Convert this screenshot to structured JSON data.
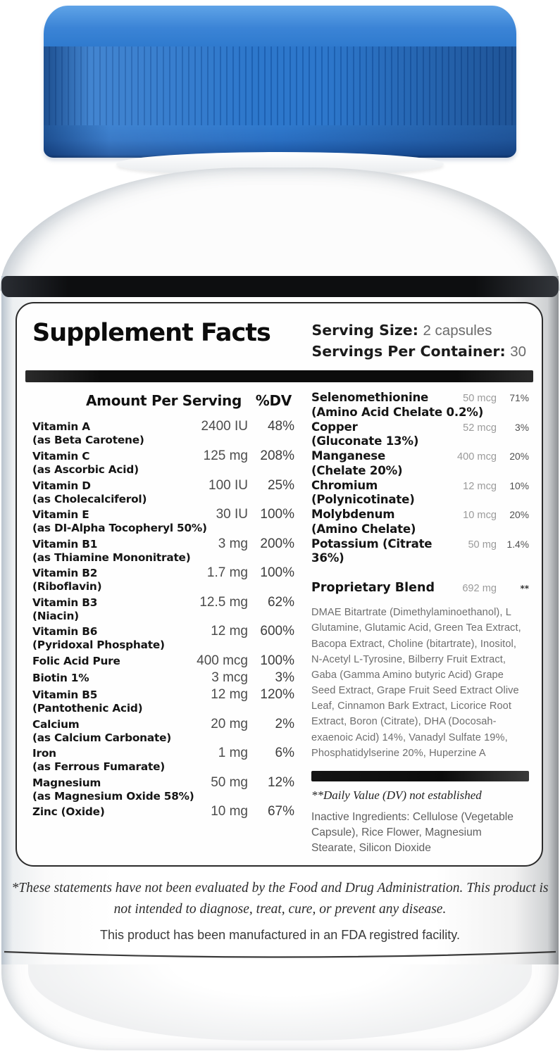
{
  "label": {
    "title": "Supplement Facts",
    "serving_size_label": "Serving Size:",
    "serving_size_value": "2 capsules",
    "servings_per_container_label": "Servings Per Container:",
    "servings_per_container_value": "30",
    "columns_header": {
      "amount": "Amount Per Serving",
      "dv": "%DV"
    },
    "left_rows": [
      {
        "name": "Vitamin A",
        "detail": "(as Beta Carotene)",
        "amount": "2400 IU",
        "dv": "48%"
      },
      {
        "name": "Vitamin C",
        "detail": "(as Ascorbic Acid)",
        "amount": "125 mg",
        "dv": "208%"
      },
      {
        "name": "Vitamin D",
        "detail": "(as Cholecalciferol)",
        "amount": "100 IU",
        "dv": "25%"
      },
      {
        "name": "Vitamin E",
        "detail": "(as DI-Alpha Tocopheryl 50%)",
        "amount": "30 IU",
        "dv": "100%"
      },
      {
        "name": "Vitamin B1",
        "detail": "(as Thiamine Mononitrate)",
        "amount": "3 mg",
        "dv": "200%"
      },
      {
        "name": "Vitamin B2",
        "detail": "(Riboflavin)",
        "amount": "1.7 mg",
        "dv": "100%"
      },
      {
        "name": "Vitamin B3",
        "detail": "(Niacin)",
        "amount": "12.5 mg",
        "dv": "62%"
      },
      {
        "name": "Vitamin B6",
        "detail": "(Pyridoxal Phosphate)",
        "amount": "12 mg",
        "dv": "600%"
      },
      {
        "name": "Folic Acid Pure",
        "detail": null,
        "amount": "400 mcg",
        "dv": "100%"
      },
      {
        "name": "Biotin 1%",
        "detail": null,
        "amount": "3 mcg",
        "dv": "3%"
      },
      {
        "name": "Vitamin B5",
        "detail": "(Pantothenic Acid)",
        "amount": "12 mg",
        "dv": "120%"
      },
      {
        "name": "Calcium",
        "detail": "(as Calcium Carbonate)",
        "amount": "20 mg",
        "dv": "2%"
      },
      {
        "name": "Iron",
        "detail": "(as Ferrous Fumarate)",
        "amount": "1 mg",
        "dv": "6%"
      },
      {
        "name": "Magnesium",
        "detail": "(as Magnesium Oxide 58%)",
        "amount": "50 mg",
        "dv": "12%"
      },
      {
        "name": "Zinc (Oxide)",
        "detail": null,
        "amount": "10 mg",
        "dv": "67%"
      }
    ],
    "right_rows": [
      {
        "name": "Selenomethionine",
        "detail": "(Amino Acid Chelate 0.2%)",
        "amount": "50 mcg",
        "dv": "71%"
      },
      {
        "name": "Copper",
        "detail": "(Gluconate 13%)",
        "amount": "52 mcg",
        "dv": "3%"
      },
      {
        "name": "Manganese",
        "detail": "(Chelate 20%)",
        "amount": "400 mcg",
        "dv": "20%"
      },
      {
        "name": "Chromium",
        "detail": "(Polynicotinate)",
        "amount": "12 mcg",
        "dv": "10%"
      },
      {
        "name": "Molybdenum",
        "detail": "(Amino Chelate)",
        "amount": "10 mcg",
        "dv": "20%"
      },
      {
        "name": "Potassium (Citrate 36%)",
        "detail": null,
        "amount": "50 mg",
        "dv": "1.4%"
      }
    ],
    "proprietary_blend": {
      "name": "Proprietary Blend",
      "amount": "692 mg",
      "dv": "**",
      "ingredients": "DMAE Bitartrate (Dimethylaminoethanol), L Glutamine, Glutamic Acid, Green Tea Extract, Bacopa Extract, Choline (bitartrate), Inositol, N-Acetyl L-Tyrosine, Bilberry Fruit Extract, Gaba (Gamma Amino butyric Acid) Grape Seed Extract, Grape Fruit Seed Extract Olive Leaf, Cinnamon Bark Extract, Licorice Root Extract, Boron (Citrate), DHA (Docosah-exaenoic Acid) 14%, Vanadyl Sulfate 19%, Phosphatidylserine 20%, Huperzine A"
    },
    "dv_note": "**Daily Value (DV) not established",
    "inactive_ingredients": "Inactive Ingredients: Cellulose (Vegetable Capsule), Rice Flower, Magnesium Stearate, Silicon Dioxide",
    "disclaimer_line1": "*These statements have not been evaluated by the Food and Drug Administration. This product is not intended to diagnose, treat, cure, or prevent any disease.",
    "disclaimer_line2": "This product has been manufactured in an FDA registred facility."
  },
  "colors": {
    "cap_blue": "#2e7ccd",
    "cap_blue_dark": "#1b55a2",
    "cap_blue_light": "#5fa3e7",
    "band_black": "#0d0e10",
    "label_white": "#fefefe"
  }
}
